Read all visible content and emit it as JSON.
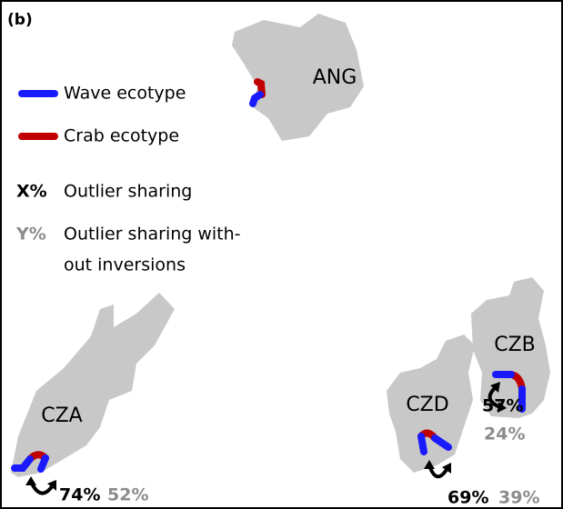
{
  "panel_label": "(b)",
  "legend": {
    "wave": "Wave ecotype",
    "crab": "Crab ecotype",
    "x_symbol": "X%",
    "x_text": "Outlier sharing",
    "y_symbol": "Y%",
    "y_text_1": "Outlier sharing with-",
    "y_text_2": "out inversions"
  },
  "islands": {
    "ang": {
      "label": "ANG"
    },
    "cza": {
      "label": "CZA",
      "sharing": "74%",
      "sharing_no_inv": "52%"
    },
    "czd": {
      "label": "CZD",
      "sharing": "69%",
      "sharing_no_inv": "39%"
    },
    "czb": {
      "label": "CZB",
      "sharing": "57%",
      "sharing_no_inv": "24%"
    }
  }
}
